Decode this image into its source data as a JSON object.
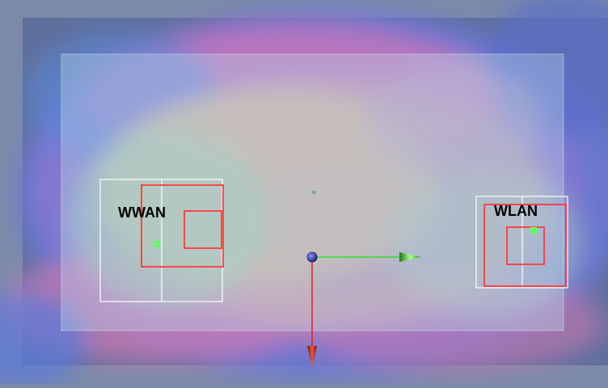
{
  "scene": {
    "antennas": [
      {
        "id": "wwan",
        "label": "WWAN",
        "marker_color": "#66ff66"
      },
      {
        "id": "wlan",
        "label": "WLAN",
        "marker_color": "#66ff66"
      }
    ],
    "colors": {
      "outer_frame": "#7a88a6",
      "board_tint": "#b8d4e8",
      "outline_white": "#ffffff",
      "outline_red": "#ff3a3a",
      "axis_x": "#33dd33",
      "axis_y": "#dd2222",
      "origin": "#3344bb"
    },
    "axes": {
      "x": {
        "direction": "right",
        "color": "#33dd33"
      },
      "y": {
        "direction": "down",
        "color": "#dd2222"
      }
    }
  }
}
